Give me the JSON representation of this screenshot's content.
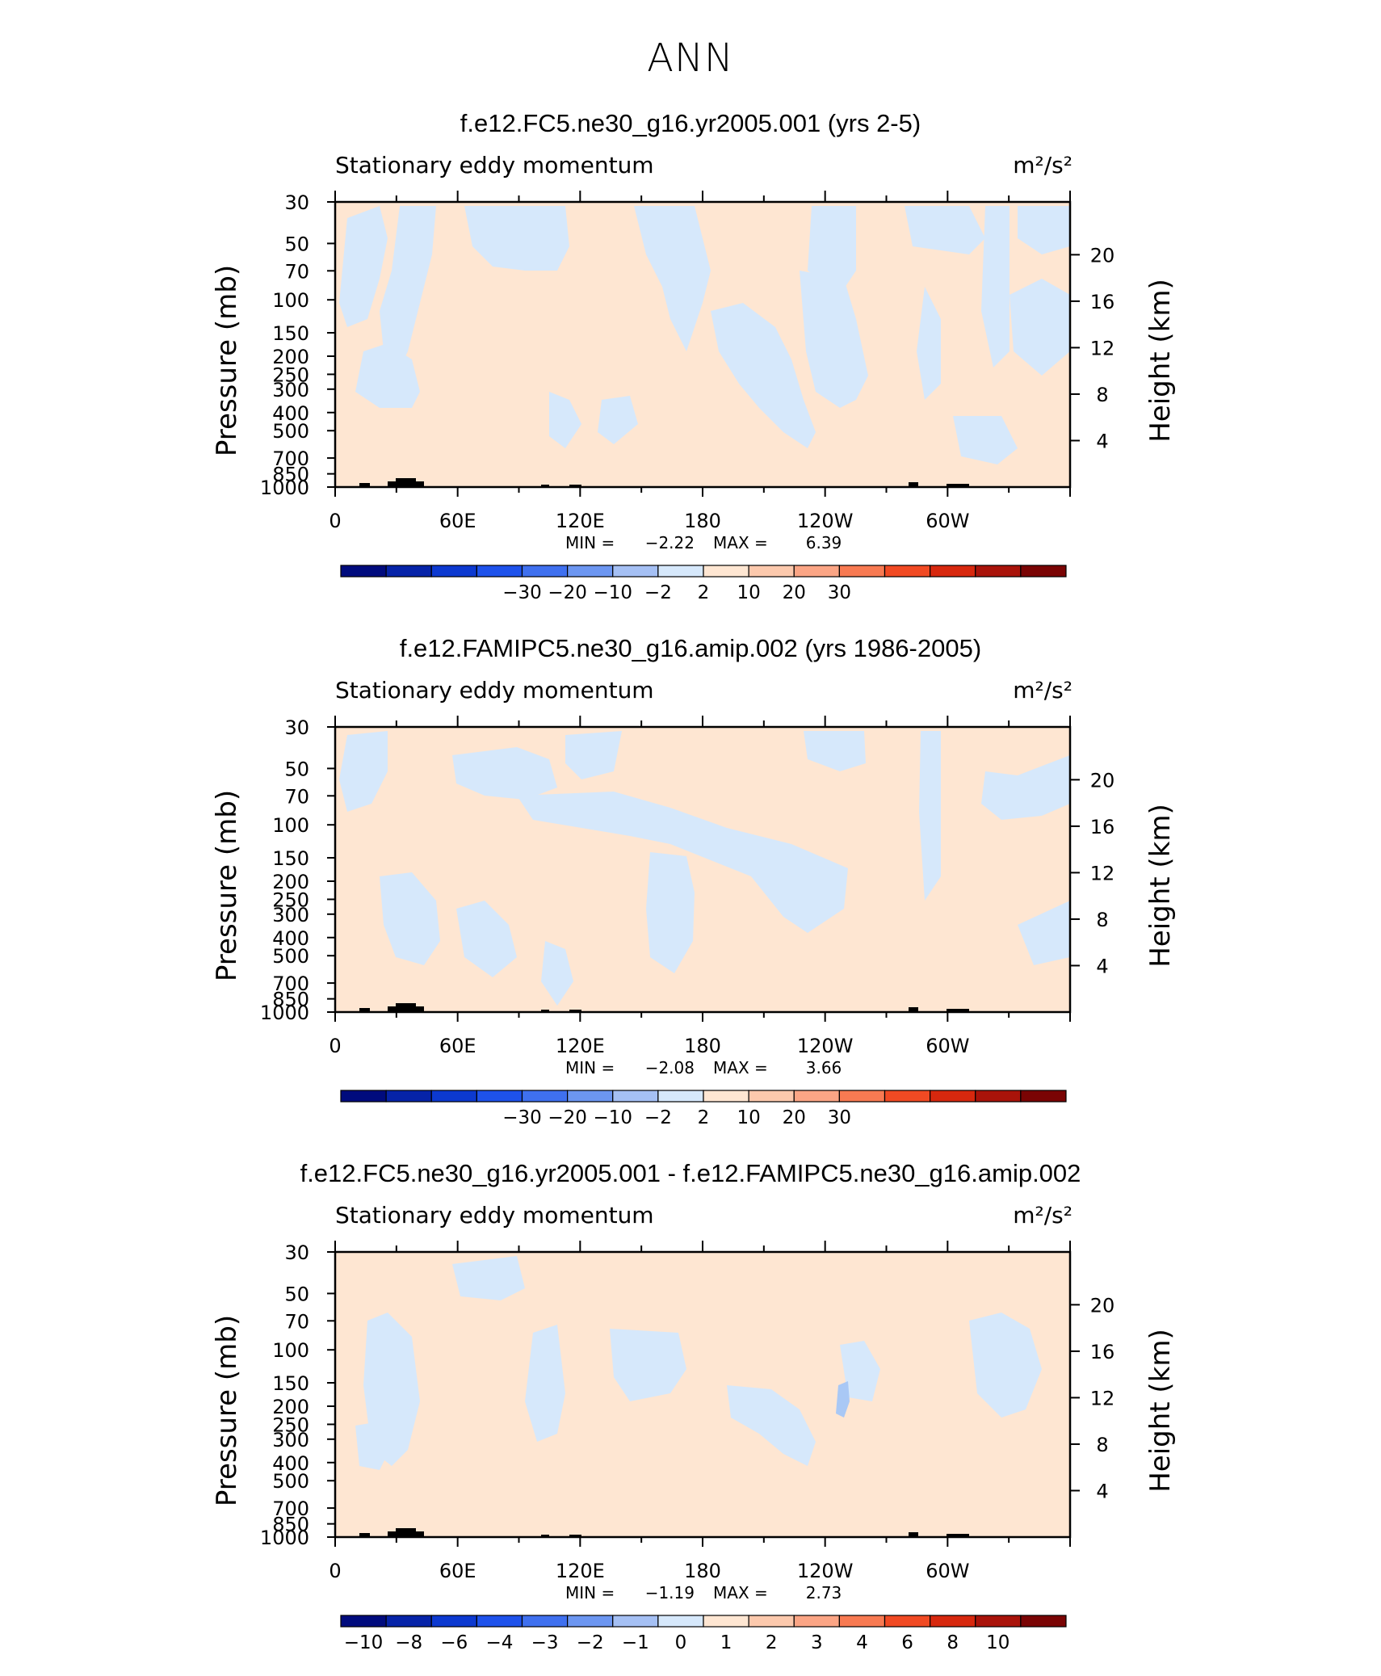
{
  "page_title": "ANN",
  "common": {
    "variable_label": "Stationary eddy momentum",
    "units_label": "m²/s²",
    "ylabel_left": "Pressure (mb)",
    "ylabel_right": "Height (km)",
    "pressure_ticks": [
      30,
      50,
      70,
      100,
      150,
      200,
      250,
      300,
      400,
      500,
      700,
      850,
      1000
    ],
    "height_ticks": [
      4,
      8,
      12,
      16,
      20
    ],
    "lon_ticks": [
      "0",
      "60E",
      "120E",
      "180",
      "120W",
      "60W"
    ],
    "min_label": "MIN =",
    "max_label": "MAX =",
    "colors": {
      "pos_small": "#fee6d2",
      "neg_small": "#d6e8fb",
      "neg_mid": "#a9c8f5",
      "topography": "#000000"
    }
  },
  "panels": [
    {
      "title": "f.e12.FC5.ne30_g16.yr2005.001 (yrs 2-5)",
      "min": "−2.22",
      "max": "6.39",
      "colorbar_labels": [
        "−30",
        "−20",
        "−10",
        "−2",
        "2",
        "10",
        "20",
        "30"
      ],
      "colorbar_colors": [
        "#000b7d",
        "#0623a8",
        "#0c39d0",
        "#1e52eb",
        "#3f70ef",
        "#6c96f1",
        "#a5c0f4",
        "#d6e8fb",
        "#fee6d2",
        "#fcc9ad",
        "#fba585",
        "#f87a52",
        "#f14a23",
        "#d7280e",
        "#a9130a",
        "#7a0404"
      ]
    },
    {
      "title": "f.e12.FAMIPC5.ne30_g16.amip.002 (yrs 1986-2005)",
      "min": "−2.08",
      "max": "3.66",
      "colorbar_labels": [
        "−30",
        "−20",
        "−10",
        "−2",
        "2",
        "10",
        "20",
        "30"
      ],
      "colorbar_colors": [
        "#000b7d",
        "#0623a8",
        "#0c39d0",
        "#1e52eb",
        "#3f70ef",
        "#6c96f1",
        "#a5c0f4",
        "#d6e8fb",
        "#fee6d2",
        "#fcc9ad",
        "#fba585",
        "#f87a52",
        "#f14a23",
        "#d7280e",
        "#a9130a",
        "#7a0404"
      ]
    },
    {
      "title": "f.e12.FC5.ne30_g16.yr2005.001 - f.e12.FAMIPC5.ne30_g16.amip.002",
      "min": "−1.19",
      "max": "2.73",
      "colorbar_labels": [
        "−10",
        "−8",
        "−6",
        "−4",
        "−3",
        "−2",
        "−1",
        "0",
        "1",
        "2",
        "3",
        "4",
        "6",
        "8",
        "10"
      ],
      "colorbar_colors": [
        "#000b7d",
        "#0623a8",
        "#0c39d0",
        "#1e52eb",
        "#3f70ef",
        "#6c96f1",
        "#a5c0f4",
        "#d6e8fb",
        "#fee6d2",
        "#fcc9ad",
        "#fba585",
        "#f87a52",
        "#f14a23",
        "#d7280e",
        "#a9130a",
        "#7a0404"
      ]
    }
  ],
  "chart_data": [
    {
      "type": "heatmap",
      "title": "f.e12.FC5.ne30_g16.yr2005.001 (yrs 2-5)",
      "subtitle": "Stationary eddy momentum",
      "units": "m²/s²",
      "xlabel": "",
      "ylabel": "Pressure (mb)",
      "ylabel_right": "Height (km)",
      "x_ticks": [
        "0",
        "60E",
        "120E",
        "180",
        "120W",
        "60W"
      ],
      "x_range_deg_east": [
        0,
        360
      ],
      "y_ticks": [
        30,
        50,
        70,
        100,
        150,
        200,
        250,
        300,
        400,
        500,
        700,
        850,
        1000
      ],
      "ylim": [
        1000,
        30
      ],
      "y_scale": "log",
      "y_right_ticks": [
        4,
        8,
        12,
        16,
        20
      ],
      "levels": [
        -30,
        -20,
        -10,
        -2,
        2,
        10,
        20,
        30
      ],
      "min": -2.22,
      "max": 6.39,
      "dominant_bins": [
        "-2 to 0",
        "0 to 2"
      ]
    },
    {
      "type": "heatmap",
      "title": "f.e12.FAMIPC5.ne30_g16.amip.002 (yrs 1986-2005)",
      "subtitle": "Stationary eddy momentum",
      "units": "m²/s²",
      "xlabel": "",
      "ylabel": "Pressure (mb)",
      "ylabel_right": "Height (km)",
      "x_ticks": [
        "0",
        "60E",
        "120E",
        "180",
        "120W",
        "60W"
      ],
      "x_range_deg_east": [
        0,
        360
      ],
      "y_ticks": [
        30,
        50,
        70,
        100,
        150,
        200,
        250,
        300,
        400,
        500,
        700,
        850,
        1000
      ],
      "ylim": [
        1000,
        30
      ],
      "y_scale": "log",
      "y_right_ticks": [
        4,
        8,
        12,
        16,
        20
      ],
      "levels": [
        -30,
        -20,
        -10,
        -2,
        2,
        10,
        20,
        30
      ],
      "min": -2.08,
      "max": 3.66,
      "dominant_bins": [
        "-2 to 0",
        "0 to 2"
      ]
    },
    {
      "type": "heatmap",
      "title": "f.e12.FC5.ne30_g16.yr2005.001 - f.e12.FAMIPC5.ne30_g16.amip.002",
      "subtitle": "Stationary eddy momentum",
      "units": "m²/s²",
      "xlabel": "",
      "ylabel": "Pressure (mb)",
      "ylabel_right": "Height (km)",
      "x_ticks": [
        "0",
        "60E",
        "120E",
        "180",
        "120W",
        "60W"
      ],
      "x_range_deg_east": [
        0,
        360
      ],
      "y_ticks": [
        30,
        50,
        70,
        100,
        150,
        200,
        250,
        300,
        400,
        500,
        700,
        850,
        1000
      ],
      "ylim": [
        1000,
        30
      ],
      "y_scale": "log",
      "y_right_ticks": [
        4,
        8,
        12,
        16,
        20
      ],
      "levels": [
        -10,
        -8,
        -6,
        -4,
        -3,
        -2,
        -1,
        0,
        1,
        2,
        3,
        4,
        6,
        8,
        10
      ],
      "min": -1.19,
      "max": 2.73,
      "dominant_bins": [
        "-1 to 0",
        "0 to 1"
      ]
    }
  ]
}
